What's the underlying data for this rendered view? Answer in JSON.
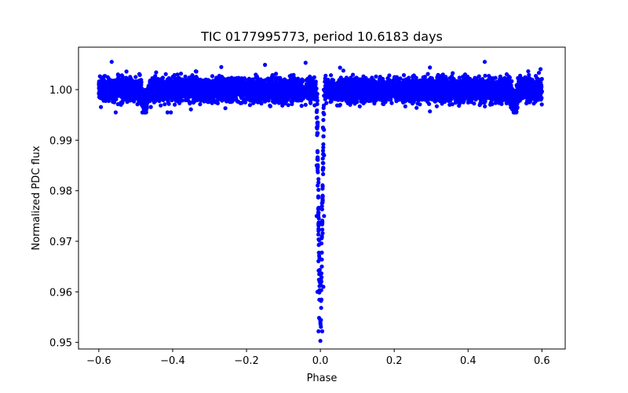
{
  "chart_data": {
    "type": "scatter",
    "title": "TIC 0177995773, period 10.6183 days",
    "xlabel": "Phase",
    "ylabel": "Normalized PDC flux",
    "xlim": [
      -0.655,
      0.663
    ],
    "ylim": [
      0.9487,
      1.0084
    ],
    "xticks": [
      -0.6,
      -0.4,
      -0.2,
      0.0,
      0.2,
      0.4,
      0.6
    ],
    "xtick_labels": [
      "−0.6",
      "−0.4",
      "−0.2",
      "0.0",
      "0.2",
      "0.4",
      "0.6"
    ],
    "yticks": [
      0.95,
      0.96,
      0.97,
      0.98,
      0.99,
      1.0
    ],
    "ytick_labels": [
      "0.95",
      "0.96",
      "0.97",
      "0.98",
      "0.99",
      "1.00"
    ],
    "grid": false,
    "marker_color": "#0000ff",
    "series": [
      {
        "name": "PDC flux",
        "phase_range": [
          -0.6,
          0.6
        ],
        "baseline_flux": 1.0,
        "scatter": 0.0015,
        "primary_eclipse": {
          "center_phase": 0.0,
          "depth_flux": 0.9503,
          "half_width_phase": 0.012
        },
        "secondary_dips": [
          {
            "center_phase": -0.475,
            "min_flux": 0.9947
          },
          {
            "center_phase": 0.525,
            "min_flux": 0.9947
          }
        ],
        "notable_points": [
          [
            -0.565,
            1.0055
          ],
          [
            0.445,
            1.0055
          ],
          [
            -0.04,
            1.0053
          ],
          [
            -0.15,
            1.0049
          ],
          [
            -0.54,
            0.997
          ],
          [
            -0.45,
            0.9975
          ],
          [
            -0.04,
            0.997
          ],
          [
            0.23,
            0.9967
          ],
          [
            0.35,
            0.997
          ],
          [
            0.0,
            0.9503
          ],
          [
            -0.005,
            0.9522
          ],
          [
            0.005,
            0.9522
          ],
          [
            -0.008,
            0.96
          ],
          [
            0.008,
            0.961
          ],
          [
            -0.01,
            0.975
          ],
          [
            0.01,
            0.975
          ],
          [
            -0.01,
            0.985
          ],
          [
            0.01,
            0.987
          ],
          [
            -0.007,
            0.9935
          ],
          [
            0.008,
            0.994
          ]
        ]
      }
    ]
  }
}
